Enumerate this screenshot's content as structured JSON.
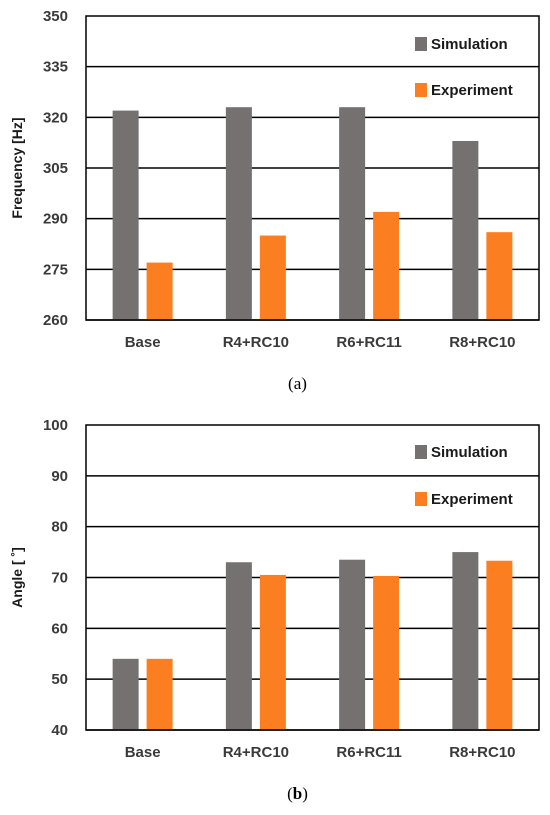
{
  "colors": {
    "simulation": "#767171",
    "experiment": "#fb7e21",
    "grid": "#000000"
  },
  "chart_data": [
    {
      "type": "bar",
      "categories": [
        "Base",
        "R4+RC10",
        "R6+RC11",
        "R8+RC10"
      ],
      "series": [
        {
          "name": "Simulation",
          "values": [
            322,
            323,
            323,
            313
          ]
        },
        {
          "name": "Experiment",
          "values": [
            277,
            285,
            292,
            286
          ]
        }
      ],
      "ylabel": "Frequency [Hz]",
      "ylim": [
        260,
        350
      ],
      "yticks": [
        260,
        275,
        290,
        305,
        320,
        335,
        350
      ],
      "grid": true,
      "legend": "top-right",
      "caption": {
        "open": "(",
        "letter": "a",
        "close": ")"
      }
    },
    {
      "type": "bar",
      "categories": [
        "Base",
        "R4+RC10",
        "R6+RC11",
        "R8+RC10"
      ],
      "series": [
        {
          "name": "Simulation",
          "values": [
            54,
            73,
            73.5,
            75
          ]
        },
        {
          "name": "Experiment",
          "values": [
            54,
            70.5,
            70.3,
            73.3
          ]
        }
      ],
      "ylabel": "Angle [ ˚]",
      "ylim": [
        40,
        100
      ],
      "yticks": [
        40,
        50,
        60,
        70,
        80,
        90,
        100
      ],
      "grid": true,
      "legend": "top-right",
      "caption": {
        "open": "(",
        "letter": "b",
        "close": ")"
      }
    }
  ]
}
